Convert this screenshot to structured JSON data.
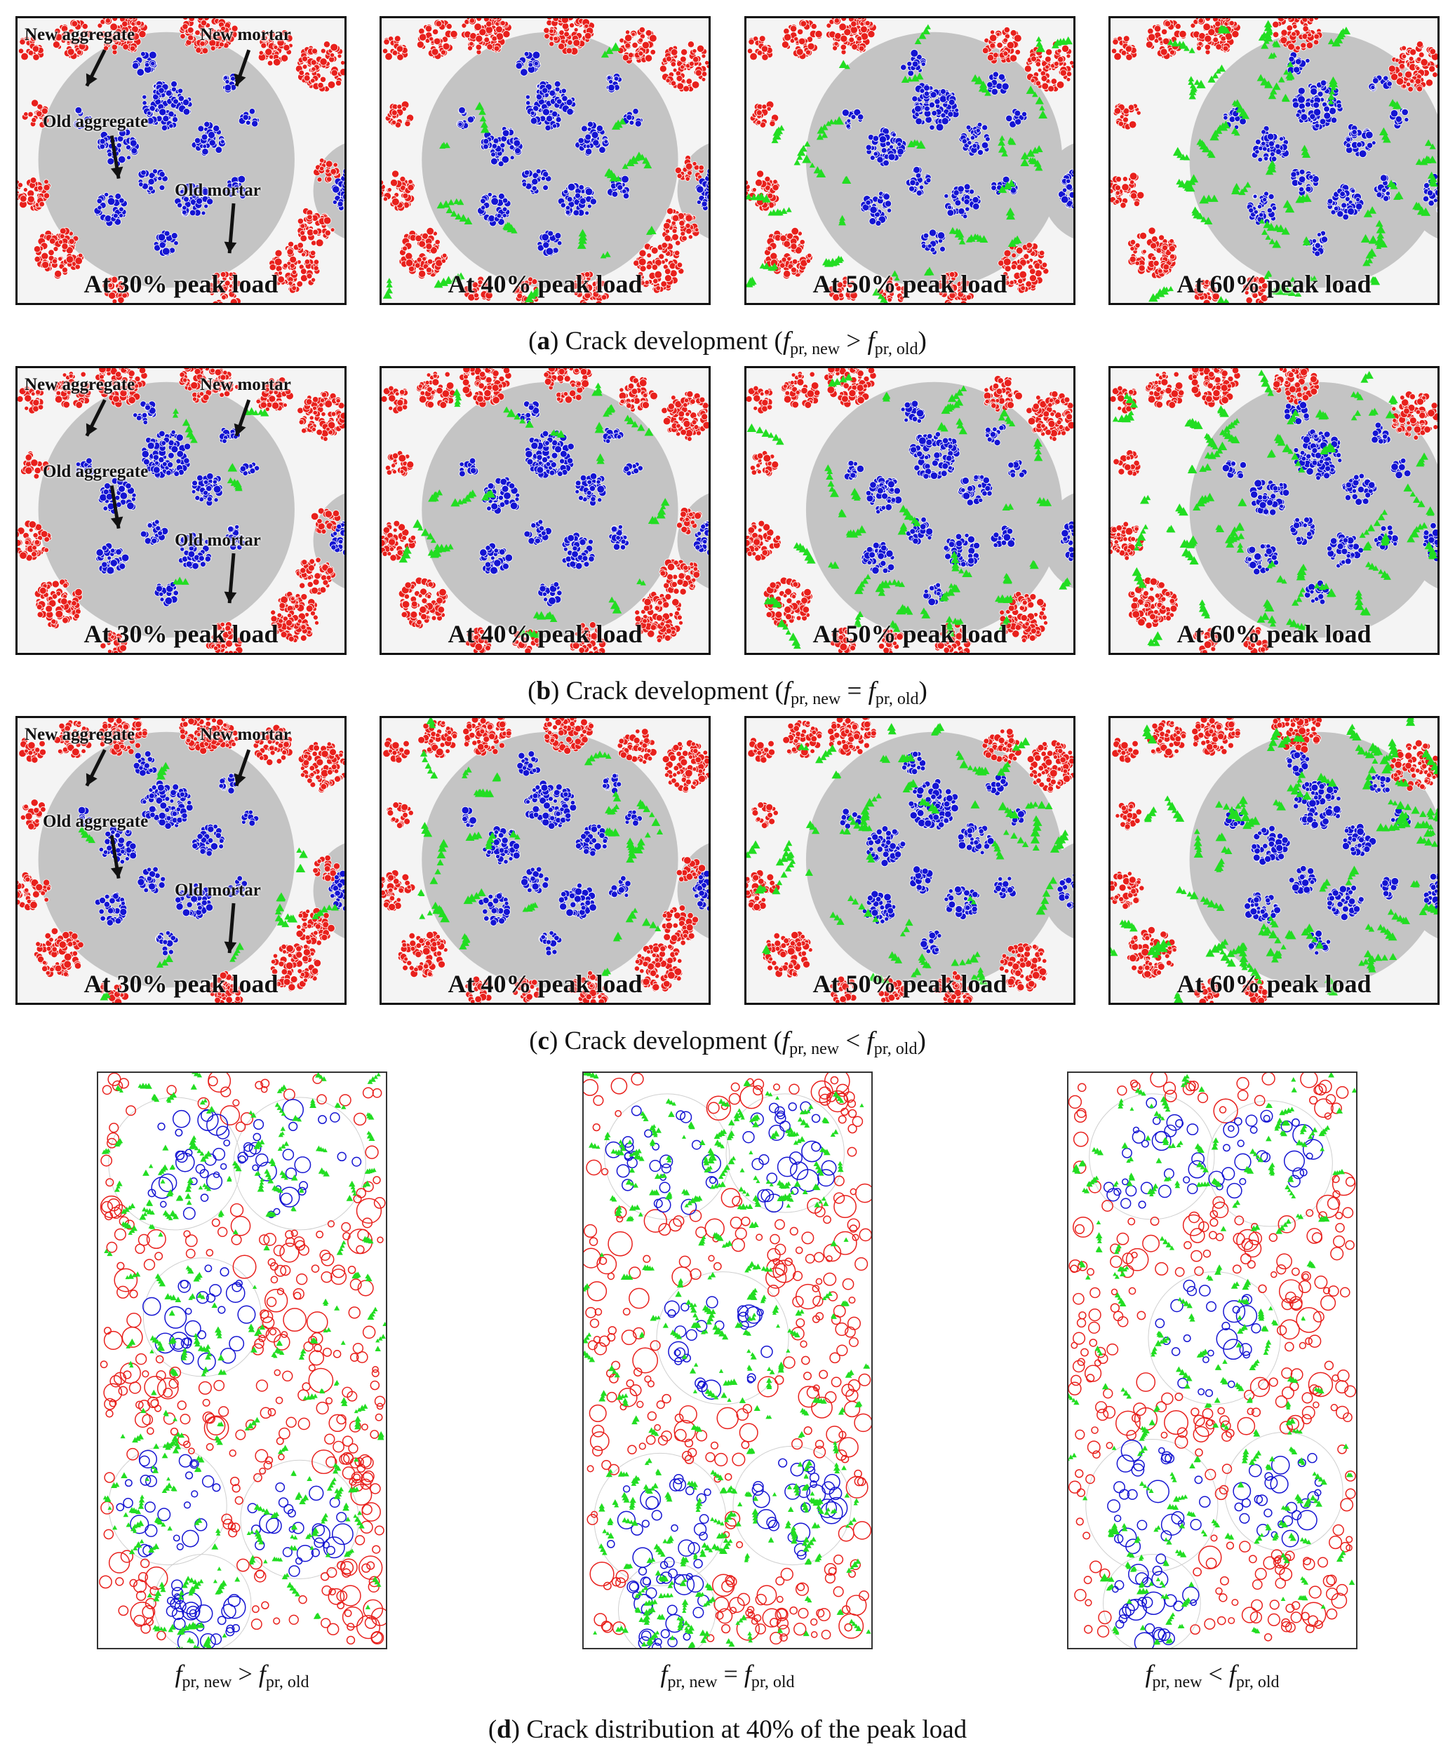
{
  "rows": [
    {
      "id": "a",
      "caption": {
        "letter": "a",
        "prefix": "Crack development (",
        "f1": "f",
        "sub1": "pr, new",
        "op": " > ",
        "f2": "f",
        "sub2": "pr, old",
        "suffix": ")"
      },
      "panels": [
        "At 30% peak load",
        "At 40% peak load",
        "At 50% peak load",
        "At 60% peak load"
      ]
    },
    {
      "id": "b",
      "caption": {
        "letter": "b",
        "prefix": "Crack development (",
        "f1": "f",
        "sub1": "pr, new",
        "op": " = ",
        "f2": "f",
        "sub2": "pr, old",
        "suffix": ")"
      },
      "panels": [
        "At 30% peak load",
        "At 40% peak load",
        "At 50% peak load",
        "At 60% peak load"
      ]
    },
    {
      "id": "c",
      "caption": {
        "letter": "c",
        "prefix": "Crack development (",
        "f1": "f",
        "sub1": "pr, new",
        "op": " < ",
        "f2": "f",
        "sub2": "pr, old",
        "suffix": ")"
      },
      "panels": [
        "At 30% peak load",
        "At 40% peak load",
        "At 50% peak load",
        "At 60% peak load"
      ]
    }
  ],
  "annotations": {
    "new_aggregate": "New aggregate",
    "new_mortar": "New mortar",
    "old_aggregate": "Old aggregate",
    "old_mortar": "Old mortar"
  },
  "distribution": {
    "labels": [
      {
        "f1": "f",
        "sub1": "pr, new",
        "op": " > ",
        "f2": "f",
        "sub2": "pr, old"
      },
      {
        "f1": "f",
        "sub1": "pr, new",
        "op": " = ",
        "f2": "f",
        "sub2": "pr, old"
      },
      {
        "f1": "f",
        "sub1": "pr, new",
        "op": " < ",
        "f2": "f",
        "sub2": "pr, old"
      }
    ],
    "caption": {
      "letter": "d",
      "text": " Crack distribution at 40% of the peak load"
    }
  },
  "colors": {
    "new_aggregate": "#e8201c",
    "old_aggregate": "#1414d2",
    "old_mortar": "#c4c4c4",
    "new_mortar": "#f4f4f4",
    "crack": "#22dd22"
  }
}
